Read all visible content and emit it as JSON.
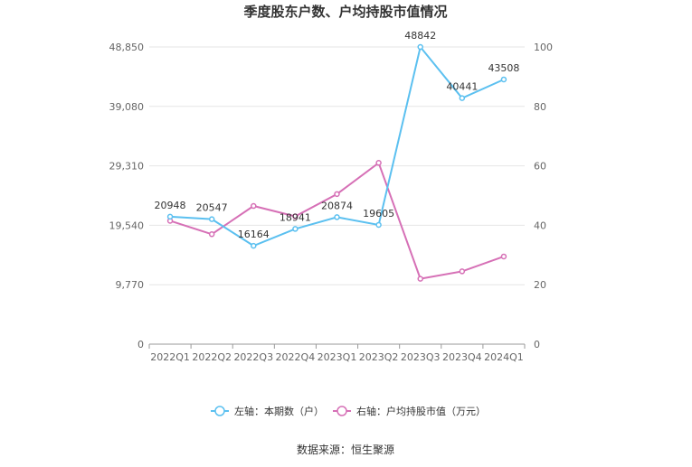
{
  "chart_data": {
    "type": "line",
    "title": "季度股东户数、户均持股市值情况",
    "categories": [
      "2022Q1",
      "2022Q2",
      "2022Q3",
      "2022Q4",
      "2023Q1",
      "2023Q2",
      "2023Q3",
      "2023Q4",
      "2024Q1"
    ],
    "left_axis": {
      "ylim": [
        0,
        48850
      ],
      "ticks": [
        "0",
        "9,770",
        "19,540",
        "29,310",
        "39,080",
        "48,850"
      ]
    },
    "right_axis": {
      "ylim": [
        0,
        100
      ],
      "ticks": [
        "0",
        "20",
        "40",
        "60",
        "80",
        "100"
      ]
    },
    "series": [
      {
        "name": "左轴：本期数（户）",
        "axis": "left",
        "color": "#5bc0f0",
        "values": [
          20948,
          20547,
          16164,
          18941,
          20874,
          19605,
          48842,
          40441,
          43508
        ],
        "labels": [
          "20948",
          "20547",
          "16164",
          "18941",
          "20874",
          "19605",
          "48842",
          "40441",
          "43508"
        ]
      },
      {
        "name": "右轴：户均持股市值（万元）",
        "axis": "right",
        "color": "#d670b6",
        "values": [
          41.5,
          37,
          46.5,
          43,
          50.5,
          61,
          22,
          24.5,
          29.5
        ]
      }
    ],
    "grid": true,
    "legend": "bottom"
  },
  "source": "数据来源：恒生聚源"
}
